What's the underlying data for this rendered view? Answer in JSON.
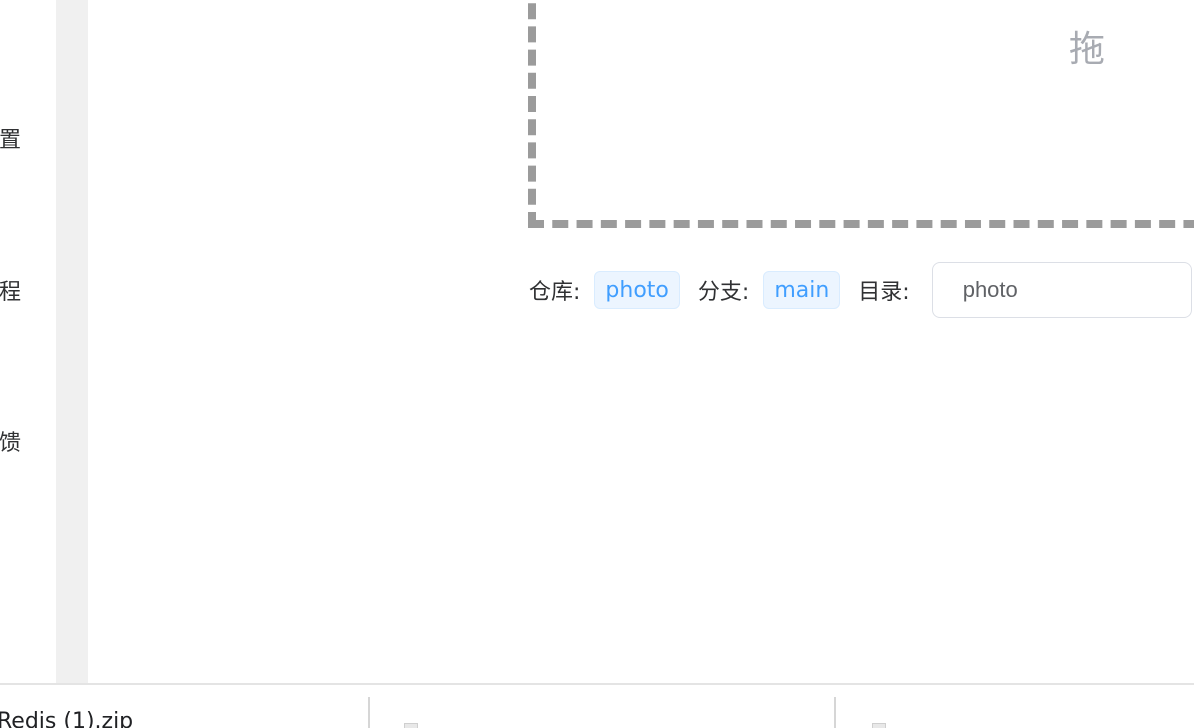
{
  "sidebar": {
    "items": [
      {
        "label": "置"
      },
      {
        "label": "程"
      },
      {
        "label": "馈"
      }
    ]
  },
  "upload": {
    "drop_hint": "拖"
  },
  "meta": {
    "repo_label": "仓库:",
    "repo_value": "photo",
    "branch_label": "分支:",
    "branch_value": "main",
    "dir_label": "目录:",
    "dir_value": "photo"
  },
  "downloads": {
    "items": [
      {
        "name": "Redis (1).zip"
      }
    ]
  }
}
